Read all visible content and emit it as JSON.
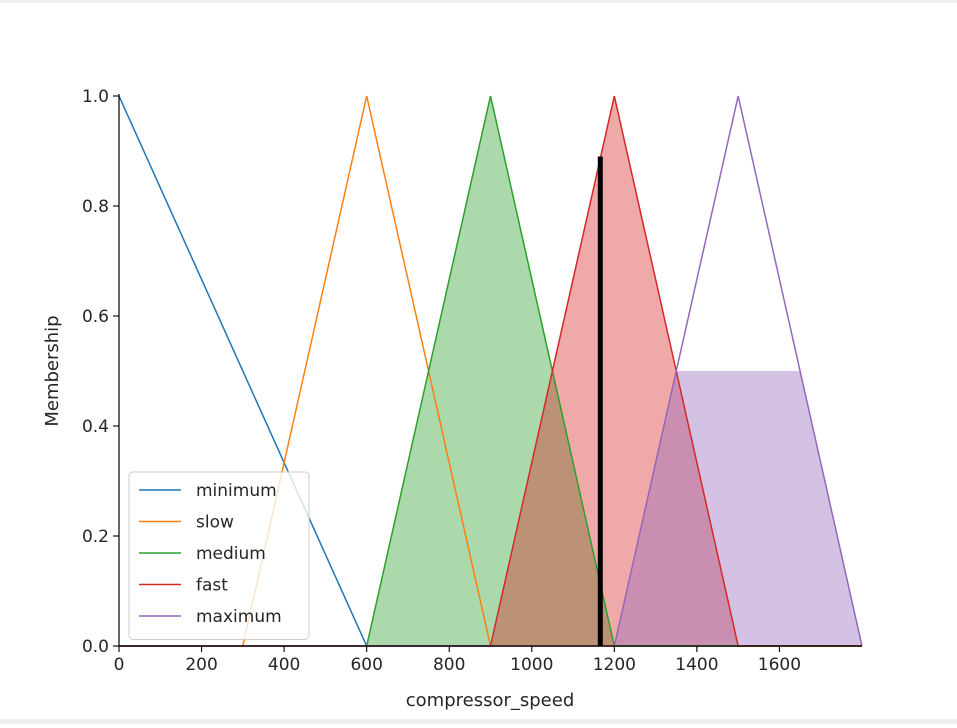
{
  "chart_data": {
    "type": "line",
    "title": "",
    "xlabel": "compressor_speed",
    "ylabel": "Membership",
    "xlim": [
      0,
      1800
    ],
    "ylim": [
      0,
      1.0
    ],
    "xticks": [
      "0",
      "200",
      "400",
      "600",
      "800",
      "1000",
      "1200",
      "1400",
      "1600"
    ],
    "yticks": [
      "0.0",
      "0.2",
      "0.4",
      "0.6",
      "0.8",
      "1.0"
    ],
    "legend_position": "lower-left",
    "grid": false,
    "series": [
      {
        "name": "minimum",
        "color": "#1f77b4",
        "x": [
          0,
          0,
          600,
          1800
        ],
        "y": [
          1,
          1,
          0,
          0
        ]
      },
      {
        "name": "slow",
        "color": "#ff7f0e",
        "x": [
          0,
          300,
          600,
          900,
          1800
        ],
        "y": [
          0,
          0,
          1,
          0,
          0
        ]
      },
      {
        "name": "medium",
        "color": "#2ca02c",
        "x": [
          0,
          600,
          900,
          1200,
          1800
        ],
        "y": [
          0,
          0,
          1,
          0,
          0
        ]
      },
      {
        "name": "fast",
        "color": "#d62728",
        "x": [
          0,
          900,
          1200,
          1500,
          1800
        ],
        "y": [
          0,
          0,
          1,
          0,
          0
        ]
      },
      {
        "name": "maximum",
        "color": "#9467bd",
        "x": [
          0,
          1200,
          1500,
          1800
        ],
        "y": [
          0,
          0,
          1,
          0
        ]
      }
    ],
    "activations": [
      {
        "series": "medium",
        "color": "#2ca02c",
        "x": [
          600,
          900,
          1200
        ],
        "y": [
          0,
          1,
          0
        ]
      },
      {
        "series": "fast",
        "color": "#d62728",
        "x": [
          900,
          1200,
          1500
        ],
        "y": [
          0,
          1,
          0
        ]
      },
      {
        "series": "maximum",
        "color": "#9467bd",
        "x": [
          1200,
          1350,
          1650,
          1800
        ],
        "y": [
          0,
          0.5,
          0.5,
          0
        ]
      }
    ],
    "output_marker": {
      "x": 1166,
      "y": 0.89
    }
  }
}
